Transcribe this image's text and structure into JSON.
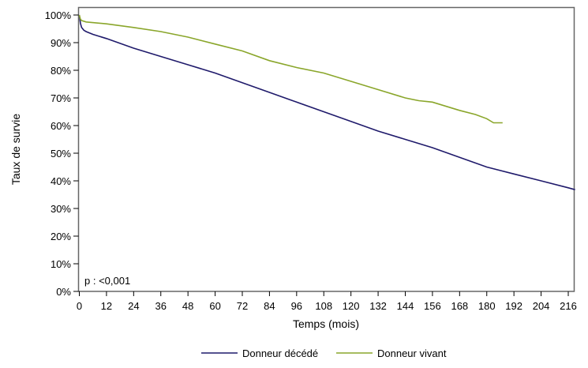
{
  "chart_data": {
    "type": "line",
    "title": "",
    "xlabel": "Temps (mois)",
    "ylabel": "Taux de survie",
    "xlim": [
      0,
      219
    ],
    "ylim": [
      0,
      100
    ],
    "xticks": [
      0,
      12,
      24,
      36,
      48,
      60,
      72,
      84,
      96,
      108,
      120,
      132,
      144,
      156,
      168,
      180,
      192,
      204,
      216
    ],
    "yticks": [
      0,
      10,
      20,
      30,
      40,
      50,
      60,
      70,
      80,
      90,
      100
    ],
    "ytick_suffix": "%",
    "grid": false,
    "legend": "bottom",
    "annotation": "p : <0,001",
    "series": [
      {
        "name": "Donneur décédé",
        "color": "#1f1a6b",
        "x": [
          0,
          0.5,
          1,
          2,
          3,
          6,
          12,
          24,
          36,
          48,
          60,
          72,
          84,
          96,
          108,
          120,
          132,
          144,
          156,
          168,
          180,
          192,
          204,
          216,
          219
        ],
        "y": [
          100,
          97,
          95.5,
          94.5,
          94,
          93,
          91.5,
          88,
          85,
          82,
          79,
          75.5,
          72,
          68.5,
          65,
          61.5,
          58,
          55,
          52,
          48.5,
          45,
          42.5,
          40,
          37.5,
          36.8
        ]
      },
      {
        "name": "Donneur vivant",
        "color": "#8aa62b",
        "x": [
          0,
          0.5,
          1,
          3,
          12,
          24,
          36,
          48,
          60,
          72,
          84,
          96,
          108,
          120,
          132,
          144,
          150,
          156,
          168,
          175,
          180,
          183,
          187
        ],
        "y": [
          100,
          98.5,
          98,
          97.5,
          96.8,
          95.5,
          94,
          92,
          89.5,
          87,
          83.5,
          81,
          79,
          76,
          73,
          70,
          69,
          68.5,
          65.5,
          64,
          62.5,
          61,
          61
        ]
      }
    ]
  }
}
